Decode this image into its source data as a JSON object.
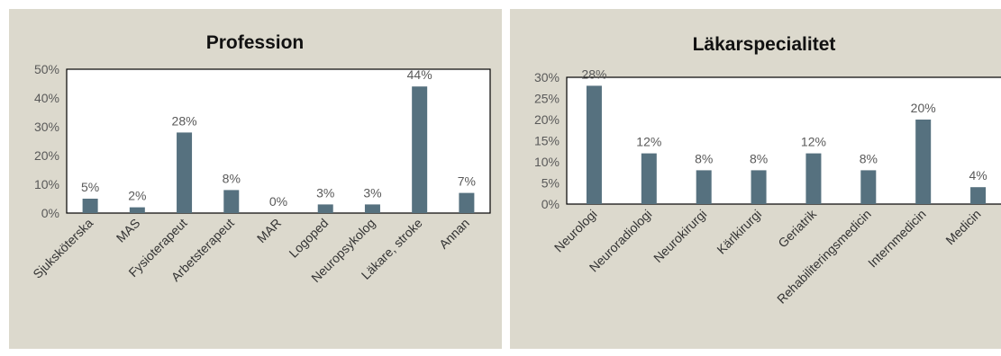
{
  "chart_data": [
    {
      "type": "bar",
      "title": "Profession",
      "categories": [
        "Sjuksköterska",
        "MAS",
        "Fysioterapeut",
        "Arbetsterapeut",
        "MAR",
        "Logoped",
        "Neuropsykolog",
        "Läkare, stroke",
        "Annan"
      ],
      "values": [
        5,
        2,
        28,
        8,
        0,
        3,
        3,
        44,
        7
      ],
      "value_labels": [
        "5%",
        "2%",
        "28%",
        "8%",
        "0%",
        "3%",
        "3%",
        "44%",
        "7%"
      ],
      "ylim": [
        0,
        50
      ],
      "yticks": [
        "0%",
        "10%",
        "20%",
        "30%",
        "40%",
        "50%"
      ],
      "grid": false,
      "bar_color": "#56717f"
    },
    {
      "type": "bar",
      "title": "Läkarspecialitet",
      "categories": [
        "Neurologi",
        "Neuroradiologi",
        "Neurokirurgi",
        "Kärlkirurgi",
        "Geriatrik",
        "Rehabiliteringsmedicin",
        "Internmedicin",
        "Medicin"
      ],
      "values": [
        28,
        12,
        8,
        8,
        12,
        8,
        20,
        4
      ],
      "value_labels": [
        "28%",
        "12%",
        "8%",
        "8%",
        "12%",
        "8%",
        "20%",
        "4%"
      ],
      "ylim": [
        0,
        30
      ],
      "yticks": [
        "0%",
        "5%",
        "10%",
        "15%",
        "20%",
        "25%",
        "30%"
      ],
      "grid": false,
      "bar_color": "#56717f"
    }
  ]
}
